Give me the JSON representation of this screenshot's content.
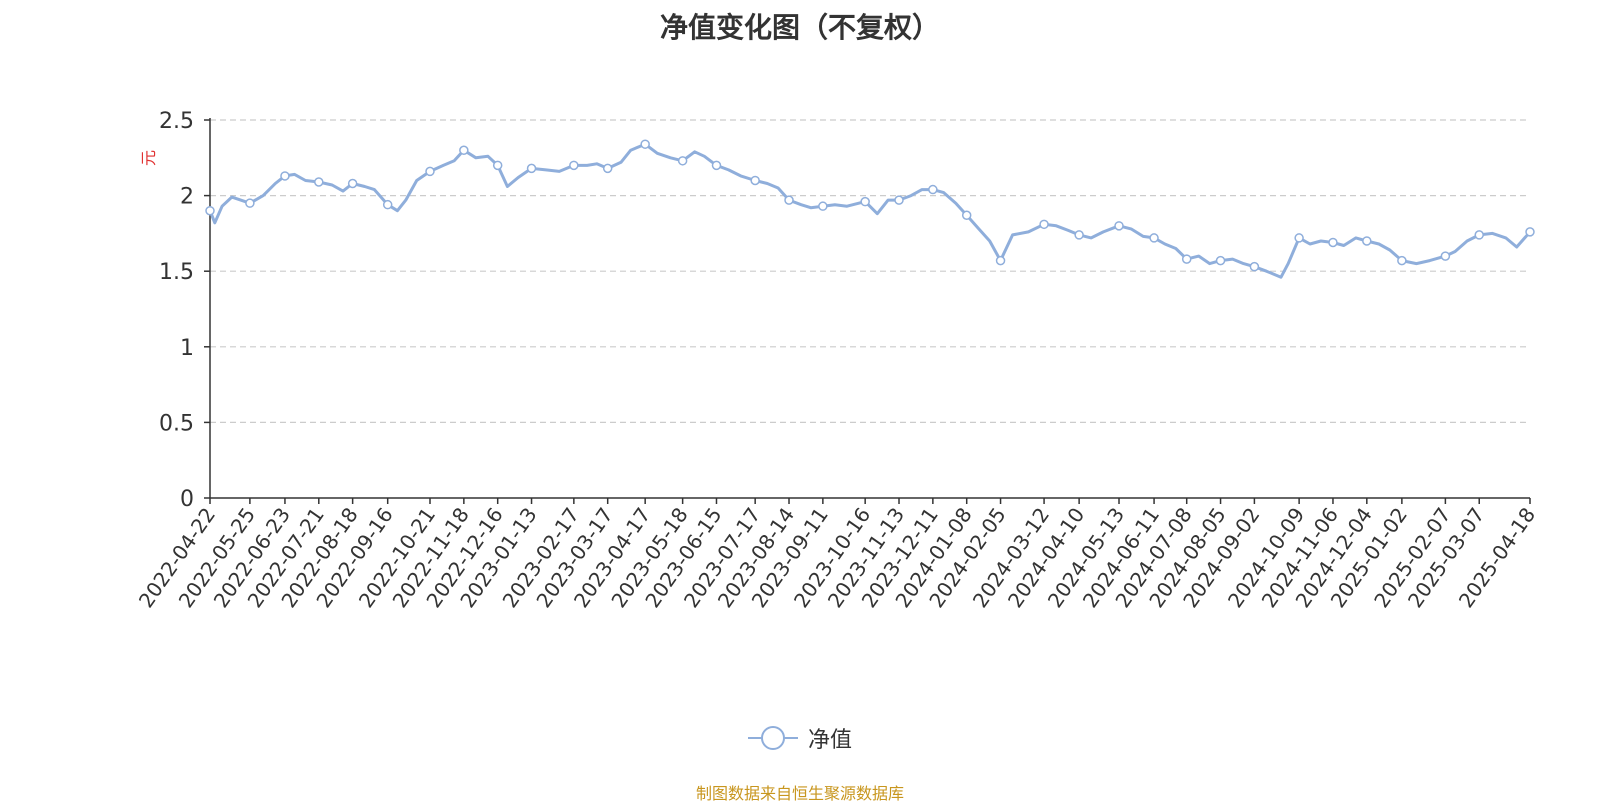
{
  "chart_data": {
    "type": "line",
    "title": "净值变化图（不复权）",
    "ylabel": "元",
    "ylim": [
      0,
      2.5
    ],
    "yticks": [
      "0",
      "0.5",
      "1",
      "1.5",
      "2",
      "2.5"
    ],
    "grid": true,
    "legend_position": "bottom",
    "colors": {
      "line": "#8faedb",
      "axis": "#333333",
      "grid": "#cccccc",
      "ylabel": "#e03030",
      "source": "#c8961e"
    },
    "categories": [
      "2022-04-22",
      "2022-05-25",
      "2022-06-23",
      "2022-07-21",
      "2022-08-18",
      "2022-09-16",
      "2022-10-21",
      "2022-11-18",
      "2022-12-16",
      "2023-01-13",
      "2023-02-17",
      "2023-03-17",
      "2023-04-17",
      "2023-05-18",
      "2023-06-15",
      "2023-07-17",
      "2023-08-14",
      "2023-09-11",
      "2023-10-16",
      "2023-11-13",
      "2023-12-11",
      "2024-01-08",
      "2024-02-05",
      "2024-03-12",
      "2024-04-10",
      "2024-05-13",
      "2024-06-11",
      "2024-07-08",
      "2024-08-05",
      "2024-09-02",
      "2024-10-09",
      "2024-11-06",
      "2024-12-04",
      "2025-01-02",
      "2025-02-07",
      "2025-03-07",
      "2025-04-18"
    ],
    "series": [
      {
        "name": "净值",
        "x": [
          "2022-04-22",
          "2022-04-26",
          "2022-05-02",
          "2022-05-10",
          "2022-05-25",
          "2022-06-05",
          "2022-06-15",
          "2022-06-23",
          "2022-07-01",
          "2022-07-10",
          "2022-07-21",
          "2022-08-01",
          "2022-08-10",
          "2022-08-18",
          "2022-08-28",
          "2022-09-05",
          "2022-09-16",
          "2022-09-24",
          "2022-10-01",
          "2022-10-10",
          "2022-10-21",
          "2022-11-01",
          "2022-11-10",
          "2022-11-18",
          "2022-11-28",
          "2022-12-08",
          "2022-12-16",
          "2022-12-24",
          "2023-01-02",
          "2023-01-13",
          "2023-01-25",
          "2023-02-05",
          "2023-02-17",
          "2023-02-28",
          "2023-03-08",
          "2023-03-17",
          "2023-03-28",
          "2023-04-05",
          "2023-04-17",
          "2023-04-27",
          "2023-05-08",
          "2023-05-18",
          "2023-05-28",
          "2023-06-05",
          "2023-06-15",
          "2023-06-25",
          "2023-07-05",
          "2023-07-17",
          "2023-07-27",
          "2023-08-05",
          "2023-08-14",
          "2023-08-24",
          "2023-09-01",
          "2023-09-11",
          "2023-09-21",
          "2023-10-01",
          "2023-10-16",
          "2023-10-26",
          "2023-11-04",
          "2023-11-13",
          "2023-11-23",
          "2023-12-02",
          "2023-12-11",
          "2023-12-20",
          "2023-12-30",
          "2024-01-08",
          "2024-01-18",
          "2024-01-27",
          "2024-02-05",
          "2024-02-15",
          "2024-02-28",
          "2024-03-12",
          "2024-03-22",
          "2024-04-01",
          "2024-04-10",
          "2024-04-20",
          "2024-04-30",
          "2024-05-13",
          "2024-05-23",
          "2024-06-02",
          "2024-06-11",
          "2024-06-20",
          "2024-06-29",
          "2024-07-08",
          "2024-07-18",
          "2024-07-27",
          "2024-08-05",
          "2024-08-15",
          "2024-08-24",
          "2024-09-02",
          "2024-09-12",
          "2024-09-24",
          "2024-09-30",
          "2024-10-09",
          "2024-10-18",
          "2024-10-27",
          "2024-11-06",
          "2024-11-15",
          "2024-11-25",
          "2024-12-04",
          "2024-12-14",
          "2024-12-23",
          "2025-01-02",
          "2025-01-14",
          "2025-01-25",
          "2025-02-07",
          "2025-02-15",
          "2025-02-25",
          "2025-03-07",
          "2025-03-18",
          "2025-03-29",
          "2025-04-07",
          "2025-04-18"
        ],
        "values": [
          1.9,
          1.82,
          1.93,
          1.99,
          1.95,
          2.0,
          2.08,
          2.13,
          2.14,
          2.1,
          2.09,
          2.07,
          2.03,
          2.08,
          2.06,
          2.04,
          1.94,
          1.9,
          1.97,
          2.1,
          2.16,
          2.2,
          2.23,
          2.3,
          2.25,
          2.26,
          2.2,
          2.06,
          2.12,
          2.18,
          2.17,
          2.16,
          2.2,
          2.2,
          2.21,
          2.18,
          2.22,
          2.3,
          2.34,
          2.28,
          2.25,
          2.23,
          2.29,
          2.26,
          2.2,
          2.17,
          2.13,
          2.1,
          2.08,
          2.05,
          1.97,
          1.94,
          1.92,
          1.93,
          1.94,
          1.93,
          1.96,
          1.88,
          1.97,
          1.97,
          2.0,
          2.04,
          2.04,
          2.02,
          1.95,
          1.87,
          1.78,
          1.7,
          1.57,
          1.74,
          1.76,
          1.81,
          1.8,
          1.77,
          1.74,
          1.72,
          1.76,
          1.8,
          1.78,
          1.73,
          1.72,
          1.68,
          1.65,
          1.58,
          1.6,
          1.55,
          1.57,
          1.58,
          1.55,
          1.53,
          1.5,
          1.46,
          1.55,
          1.72,
          1.68,
          1.7,
          1.69,
          1.67,
          1.72,
          1.7,
          1.68,
          1.64,
          1.57,
          1.55,
          1.57,
          1.6,
          1.63,
          1.7,
          1.74,
          1.75,
          1.72,
          1.66,
          1.76
        ]
      }
    ]
  },
  "legend": {
    "label": "净值"
  },
  "source_note": "制图数据来自恒生聚源数据库"
}
